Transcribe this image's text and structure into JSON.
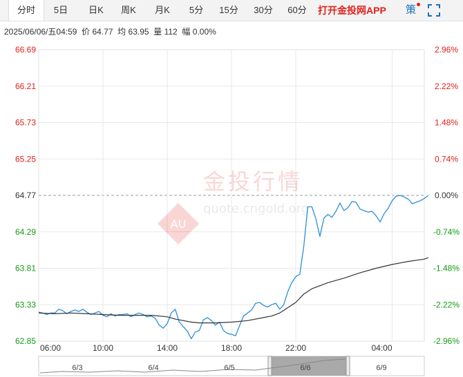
{
  "toolbar": {
    "tabs": [
      {
        "label": "分时",
        "active": true
      },
      {
        "label": "5日"
      },
      {
        "label": "日K"
      },
      {
        "label": "周K"
      },
      {
        "label": "月K"
      },
      {
        "label": "5分"
      },
      {
        "label": "15分"
      },
      {
        "label": "30分"
      },
      {
        "label": "60分"
      }
    ],
    "app_link": "打开金投网APP",
    "strategy": "策"
  },
  "info": {
    "datetime": "2025/06/06/五04:59",
    "price_label": "价",
    "price": "64.77",
    "avg_label": "均",
    "avg": "63.95",
    "volume_label": "量",
    "volume": "112",
    "change_label": "幅",
    "change": "0.00%"
  },
  "watermark": {
    "brand": "金投行情",
    "url": "quote.cngold.org",
    "logo_text": "AU"
  },
  "colors": {
    "price_line": "#2a8fd6",
    "avg_line": "#333333",
    "up": "#e0201b",
    "down": "#139b13",
    "ref": "#333333",
    "grid": "#e8e8e8"
  },
  "chart_data": {
    "type": "line",
    "prev_close": 64.77,
    "y_ticks": [
      "66.69",
      "66.21",
      "65.73",
      "65.25",
      "64.77",
      "64.29",
      "63.81",
      "63.33",
      "62.85"
    ],
    "y_right_ticks": [
      "2.96%",
      "2.22%",
      "1.48%",
      "0.74%",
      "0.00%",
      "-0.74%",
      "-1.48%",
      "-2.22%",
      "-2.96%"
    ],
    "ylim": [
      62.85,
      66.69
    ],
    "x_ticks": [
      "06:00",
      "10:00",
      "14:00",
      "18:00",
      "22:00",
      "04:00"
    ],
    "series": [
      {
        "role": "price",
        "points": [
          [
            0,
            63.23
          ],
          [
            0.25,
            63.22
          ],
          [
            0.5,
            63.2
          ],
          [
            0.75,
            63.22
          ],
          [
            1,
            63.22
          ],
          [
            1.25,
            63.27
          ],
          [
            1.5,
            63.25
          ],
          [
            1.75,
            63.21
          ],
          [
            2,
            63.24
          ],
          [
            2.25,
            63.26
          ],
          [
            2.5,
            63.24
          ],
          [
            2.75,
            63.27
          ],
          [
            3,
            63.23
          ],
          [
            3.25,
            63.2
          ],
          [
            3.5,
            63.22
          ],
          [
            3.75,
            63.24
          ],
          [
            4,
            63.19
          ],
          [
            4.25,
            63.17
          ],
          [
            4.5,
            63.21
          ],
          [
            4.75,
            63.18
          ],
          [
            5,
            63.2
          ],
          [
            5.25,
            63.2
          ],
          [
            5.5,
            63.21
          ],
          [
            5.75,
            63.17
          ],
          [
            6,
            63.2
          ],
          [
            6.25,
            63.22
          ],
          [
            6.5,
            63.2
          ],
          [
            6.75,
            63.17
          ],
          [
            7,
            63.18
          ],
          [
            7.25,
            63.15
          ],
          [
            7.5,
            63.06
          ],
          [
            7.75,
            63.02
          ],
          [
            8,
            63.08
          ],
          [
            8.25,
            63.22
          ],
          [
            8.5,
            63.27
          ],
          [
            8.75,
            63.1
          ],
          [
            9,
            63.04
          ],
          [
            9.25,
            62.98
          ],
          [
            9.5,
            62.88
          ],
          [
            9.75,
            62.97
          ],
          [
            10,
            62.99
          ],
          [
            10.25,
            63.13
          ],
          [
            10.5,
            63.16
          ],
          [
            10.75,
            63.12
          ],
          [
            11,
            63.06
          ],
          [
            11.25,
            63.1
          ],
          [
            11.5,
            62.99
          ],
          [
            11.75,
            62.95
          ],
          [
            12,
            62.94
          ],
          [
            12.25,
            62.92
          ],
          [
            12.5,
            63.05
          ],
          [
            12.75,
            63.18
          ],
          [
            13,
            63.22
          ],
          [
            13.25,
            63.26
          ],
          [
            13.5,
            63.35
          ],
          [
            13.75,
            63.36
          ],
          [
            14,
            63.32
          ],
          [
            14.25,
            63.3
          ],
          [
            14.5,
            63.33
          ],
          [
            14.75,
            63.35
          ],
          [
            15,
            63.27
          ],
          [
            15.25,
            63.33
          ],
          [
            15.5,
            63.5
          ],
          [
            15.75,
            63.62
          ],
          [
            16,
            63.7
          ],
          [
            16.25,
            63.73
          ],
          [
            16.5,
            64.1
          ],
          [
            16.75,
            64.62
          ],
          [
            17,
            64.62
          ],
          [
            17.25,
            64.46
          ],
          [
            17.5,
            64.23
          ],
          [
            17.75,
            64.47
          ],
          [
            18,
            64.52
          ],
          [
            18.25,
            64.48
          ],
          [
            18.5,
            64.56
          ],
          [
            18.75,
            64.67
          ],
          [
            19,
            64.57
          ],
          [
            19.25,
            64.61
          ],
          [
            19.5,
            64.69
          ],
          [
            19.75,
            64.68
          ],
          [
            20,
            64.59
          ],
          [
            20.25,
            64.57
          ],
          [
            20.5,
            64.55
          ],
          [
            20.75,
            64.56
          ],
          [
            21,
            64.5
          ],
          [
            21.25,
            64.42
          ],
          [
            21.5,
            64.53
          ],
          [
            21.75,
            64.6
          ],
          [
            22,
            64.7
          ],
          [
            22.25,
            64.76
          ],
          [
            22.5,
            64.77
          ],
          [
            22.75,
            64.75
          ],
          [
            23,
            64.72
          ],
          [
            23.25,
            64.66
          ],
          [
            23.5,
            64.68
          ],
          [
            23.75,
            64.7
          ],
          [
            24,
            64.73
          ],
          [
            24.25,
            64.77
          ]
        ]
      },
      {
        "role": "average",
        "points": [
          [
            0,
            63.22
          ],
          [
            1,
            63.21
          ],
          [
            2,
            63.22
          ],
          [
            3,
            63.21
          ],
          [
            4,
            63.2
          ],
          [
            5,
            63.19
          ],
          [
            6,
            63.19
          ],
          [
            7,
            63.19
          ],
          [
            8,
            63.17
          ],
          [
            8.5,
            63.14
          ],
          [
            9,
            63.12
          ],
          [
            9.5,
            63.1
          ],
          [
            10,
            63.09
          ],
          [
            11,
            63.09
          ],
          [
            12,
            63.1
          ],
          [
            13,
            63.12
          ],
          [
            14,
            63.16
          ],
          [
            14.5,
            63.18
          ],
          [
            15,
            63.22
          ],
          [
            15.5,
            63.29
          ],
          [
            16,
            63.36
          ],
          [
            16.5,
            63.47
          ],
          [
            17,
            63.54
          ],
          [
            17.5,
            63.58
          ],
          [
            18,
            63.62
          ],
          [
            19,
            63.68
          ],
          [
            20,
            63.75
          ],
          [
            21,
            63.81
          ],
          [
            22,
            63.86
          ],
          [
            23,
            63.9
          ],
          [
            24,
            63.93
          ],
          [
            24.25,
            63.95
          ]
        ]
      }
    ],
    "navigator": {
      "labels": [
        "6/3",
        "6/4",
        "6/5",
        "6/6",
        "6/9"
      ]
    }
  }
}
